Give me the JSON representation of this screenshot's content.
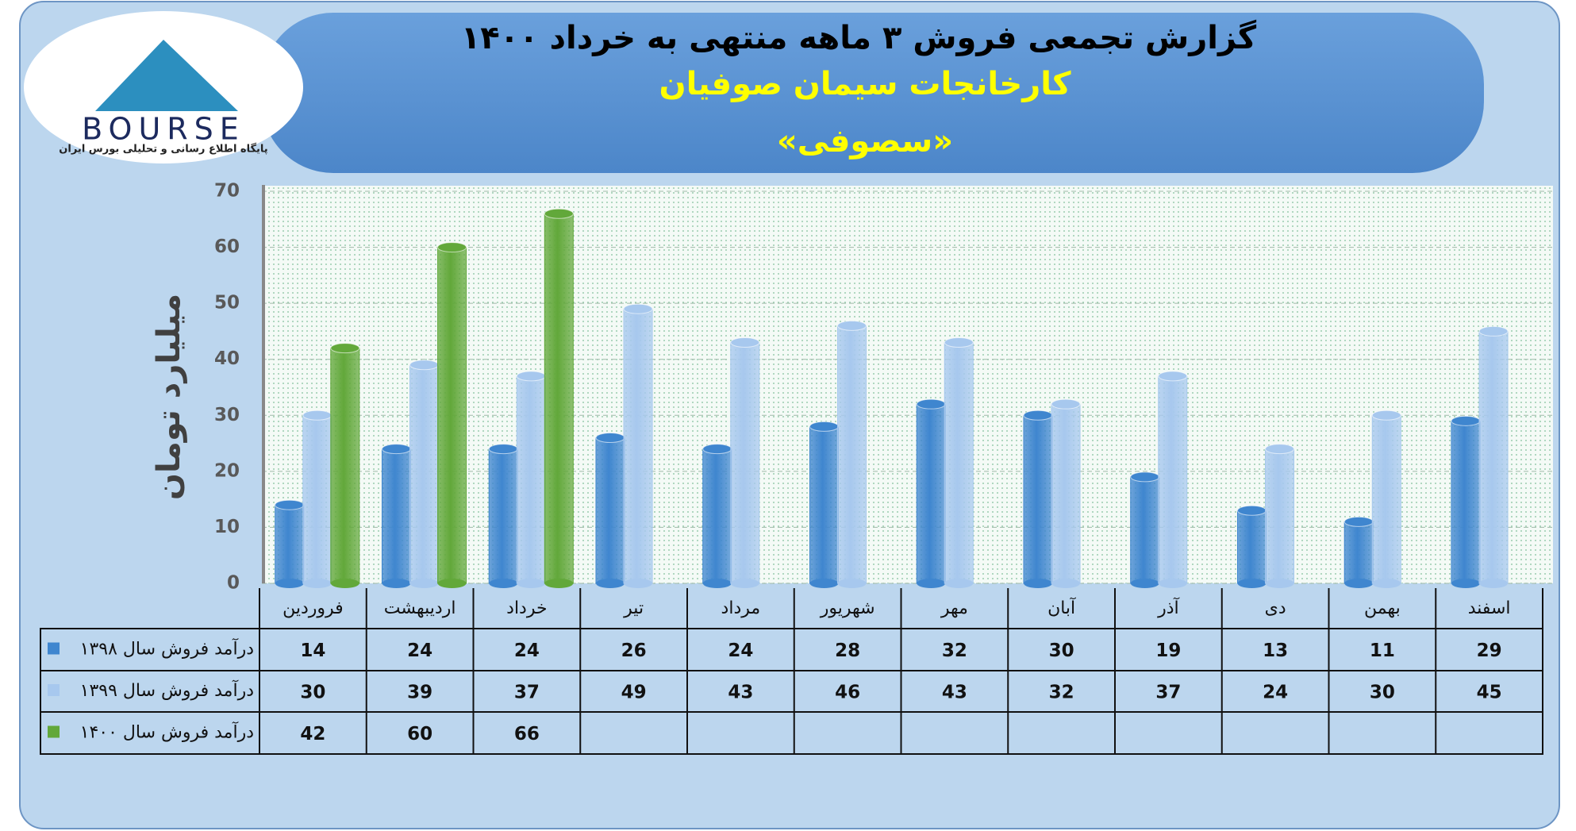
{
  "logo": {
    "brand": "BOURSE",
    "tagline": "پایگاه اطلاع رسانی و تحلیلی بورس ایران"
  },
  "chart_data": {
    "type": "bar",
    "title": "گزارش تجمعی فروش ۳ ماهه منتهی به خرداد ۱۴۰۰",
    "subtitle": "کارخانجات سیمان صوفیان",
    "ticker": "«سصوفی»",
    "y_label": "میلیارد تومان",
    "categories": [
      "فروردین",
      "اردیبهشت",
      "خرداد",
      "تیر",
      "مرداد",
      "شهریور",
      "مهر",
      "آبان",
      "آذر",
      "دی",
      "بهمن",
      "اسفند"
    ],
    "series": [
      {
        "name": "درآمد فروش سال ۱۳۹۸",
        "color": "#3f86cf",
        "values": [
          14,
          24,
          24,
          26,
          24,
          28,
          32,
          30,
          19,
          13,
          11,
          29
        ]
      },
      {
        "name": "درآمد فروش سال ۱۳۹۹",
        "color": "#a7c8ee",
        "values": [
          30,
          39,
          37,
          49,
          43,
          46,
          43,
          32,
          37,
          24,
          30,
          45
        ]
      },
      {
        "name": "درآمد فروش سال ۱۴۰۰",
        "color": "#62a83a",
        "values": [
          42,
          60,
          66,
          null,
          null,
          null,
          null,
          null,
          null,
          null,
          null,
          null
        ]
      }
    ],
    "ylim": [
      0,
      70
    ],
    "yticks": [
      0,
      10,
      20,
      30,
      40,
      50,
      60,
      70
    ],
    "grid": true
  }
}
